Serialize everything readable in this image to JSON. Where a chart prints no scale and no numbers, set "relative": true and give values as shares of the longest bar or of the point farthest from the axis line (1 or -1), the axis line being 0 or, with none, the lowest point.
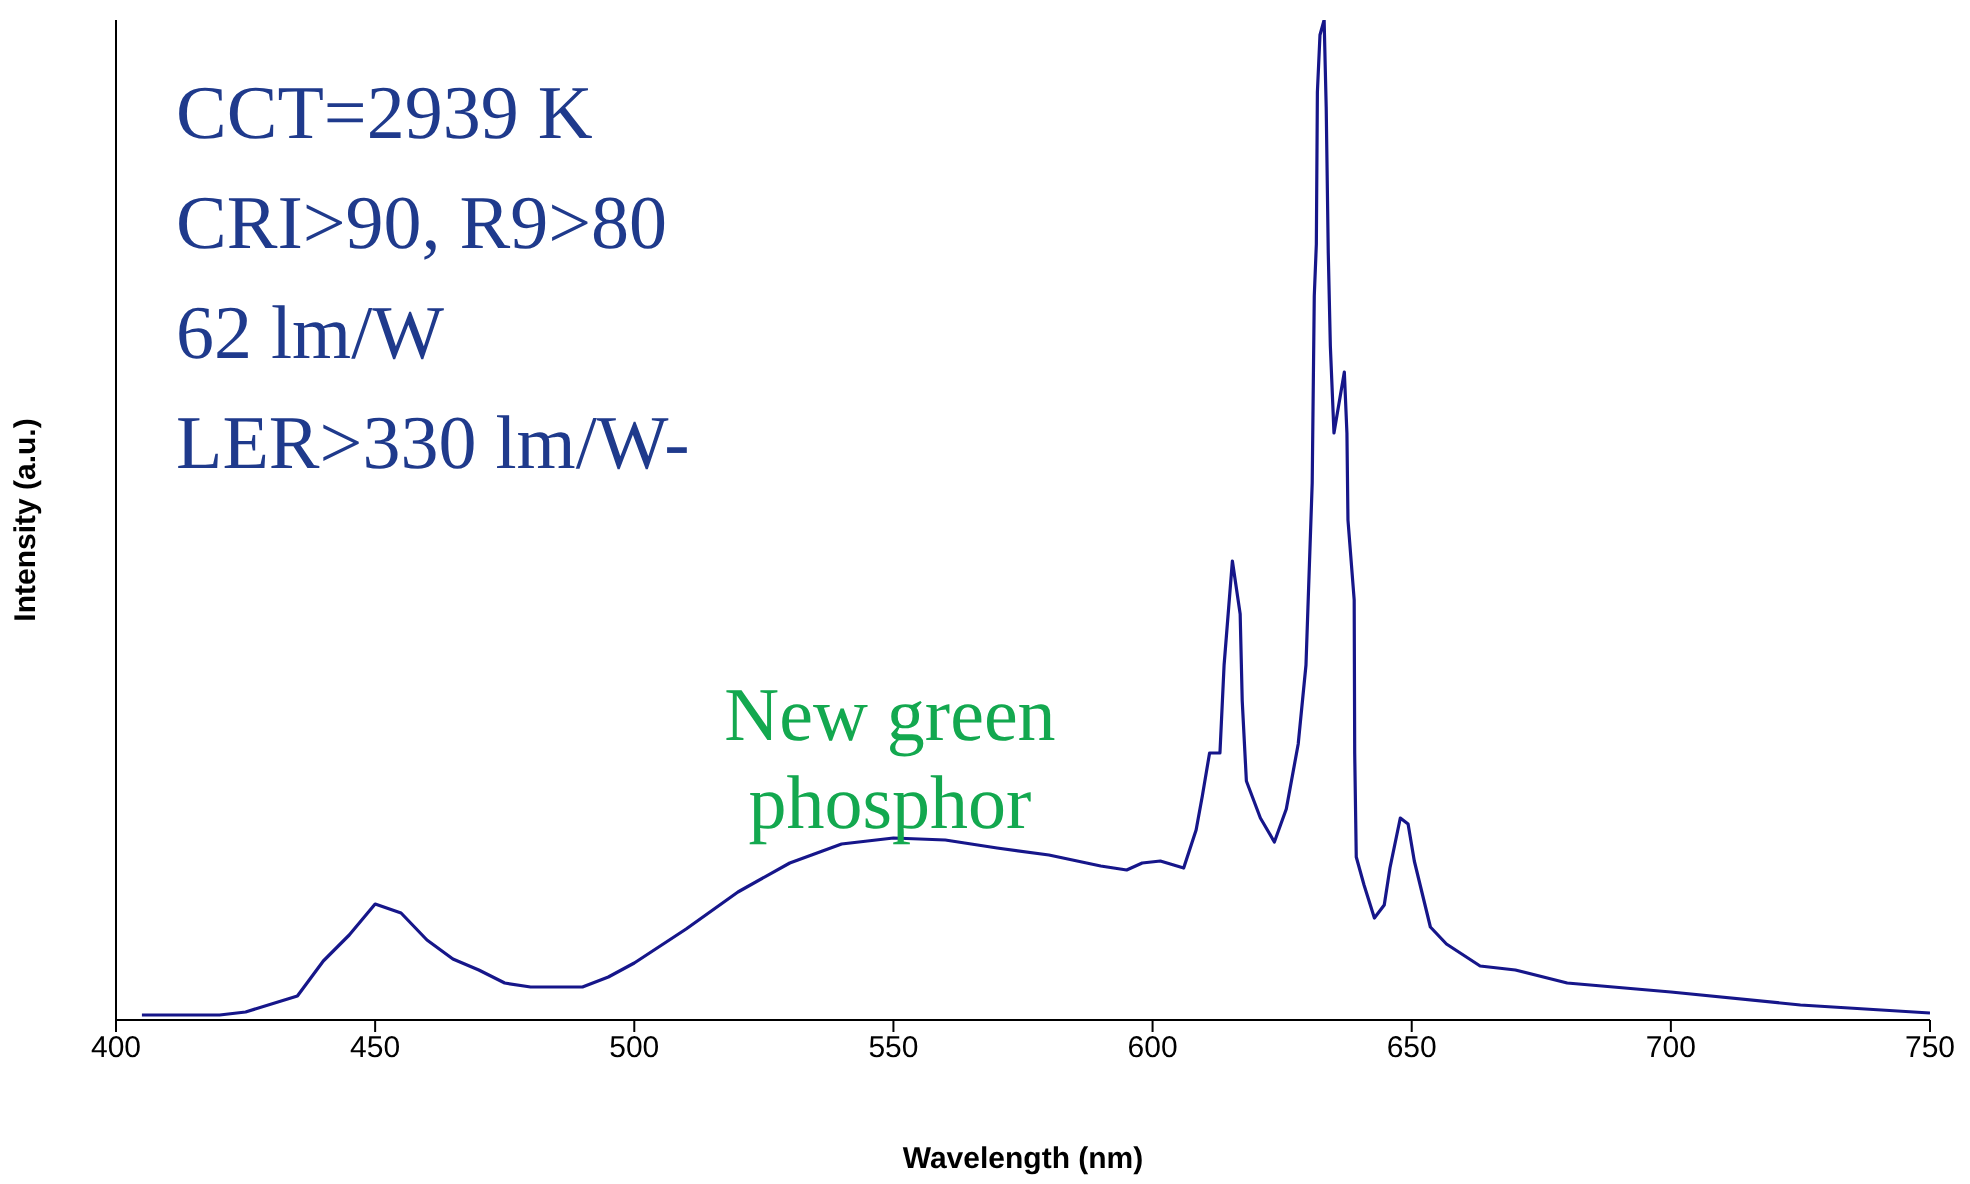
{
  "chart_data": {
    "type": "line",
    "relative": true,
    "xlabel": "Wavelength (nm)",
    "ylabel": "Intensity (a.u.)",
    "xlim": [
      400,
      750
    ],
    "xticks": [
      400,
      450,
      500,
      550,
      600,
      650,
      700,
      750
    ],
    "annotations": [
      "CCT=2939 K",
      "CRI>90, R9>80",
      "62 lm/W",
      "LER>330 lm/W-",
      "New green phosphor"
    ],
    "x": [
      405,
      420,
      425,
      435,
      440,
      445,
      450,
      455,
      460,
      465,
      470,
      475,
      480,
      490,
      495,
      500,
      510,
      520,
      530,
      540,
      550,
      560,
      570,
      580,
      590,
      595,
      598,
      601.5,
      606,
      608.4,
      609.6,
      611,
      613,
      613.8,
      615.4,
      616.9,
      617.3,
      618.1,
      620.8,
      623.5,
      625.8,
      628.1,
      629.6,
      630.8,
      631.2,
      631.6,
      631.8,
      632.3,
      633.1,
      633.5,
      633.9,
      634.3,
      635,
      637,
      637.5,
      637.7,
      638.9,
      639,
      639.3,
      640.8,
      642.8,
      644.7,
      645.8,
      647.8,
      649.3,
      650.5,
      653.6,
      656.7,
      663.2,
      670,
      680,
      700,
      725,
      750
    ],
    "series": [
      {
        "color": "#16168a",
        "values": [
          0.005,
          0.005,
          0.008,
          0.024,
          0.059,
          0.085,
          0.116,
          0.107,
          0.08,
          0.061,
          0.05,
          0.037,
          0.033,
          0.033,
          0.043,
          0.057,
          0.091,
          0.128,
          0.157,
          0.176,
          0.182,
          0.18,
          0.172,
          0.165,
          0.154,
          0.15,
          0.157,
          0.159,
          0.152,
          0.19,
          0.224,
          0.267,
          0.267,
          0.355,
          0.459,
          0.406,
          0.319,
          0.239,
          0.202,
          0.178,
          0.211,
          0.276,
          0.355,
          0.537,
          0.724,
          0.776,
          0.928,
          0.985,
          1,
          0.913,
          0.767,
          0.674,
          0.587,
          0.648,
          0.587,
          0.5,
          0.42,
          0.267,
          0.163,
          0.135,
          0.102,
          0.115,
          0.152,
          0.202,
          0.196,
          0.159,
          0.093,
          0.076,
          0.054,
          0.05,
          0.037,
          0.028,
          0.015,
          0.007
        ]
      }
    ]
  }
}
